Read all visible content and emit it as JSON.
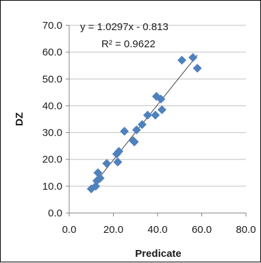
{
  "chart_data": {
    "type": "scatter",
    "xlabel": "Predicate",
    "ylabel": "DZ",
    "xlim": [
      0,
      80
    ],
    "ylim": [
      0,
      70
    ],
    "x_ticks": [
      0,
      20,
      40,
      60,
      80
    ],
    "y_ticks": [
      0,
      10,
      20,
      30,
      40,
      50,
      60,
      70
    ],
    "x_tick_labels": [
      "0.0",
      "20.0",
      "40.0",
      "60.0",
      "80.0"
    ],
    "y_tick_labels": [
      "0.0",
      "10.0",
      "20.0",
      "30.0",
      "40.0",
      "50.0",
      "60.0",
      "70.0"
    ],
    "grid": {
      "horizontal": true,
      "vertical": false
    },
    "legend": "none",
    "marker": "diamond",
    "marker_color": "#4f81bd",
    "trendline_color": "#404040",
    "trendline": {
      "type": "linear",
      "slope": 1.0297,
      "intercept": -0.813,
      "x_range": [
        9,
        58
      ]
    },
    "annotations": {
      "equation": "y = 1.0297x - 0.813",
      "r_squared": "R² = 0.9622"
    },
    "points": [
      {
        "x": 10,
        "y": 9
      },
      {
        "x": 12,
        "y": 10
      },
      {
        "x": 12.5,
        "y": 12
      },
      {
        "x": 13,
        "y": 15
      },
      {
        "x": 14,
        "y": 13
      },
      {
        "x": 17,
        "y": 18.5
      },
      {
        "x": 21.5,
        "y": 22
      },
      {
        "x": 22,
        "y": 19
      },
      {
        "x": 22.5,
        "y": 23
      },
      {
        "x": 25,
        "y": 30.5
      },
      {
        "x": 29,
        "y": 27
      },
      {
        "x": 29.5,
        "y": 26.5
      },
      {
        "x": 30.5,
        "y": 31
      },
      {
        "x": 33,
        "y": 33
      },
      {
        "x": 35.5,
        "y": 36.5
      },
      {
        "x": 39,
        "y": 36.5
      },
      {
        "x": 39.5,
        "y": 43.5
      },
      {
        "x": 41.5,
        "y": 42.5
      },
      {
        "x": 42,
        "y": 38.5
      },
      {
        "x": 51,
        "y": 57
      },
      {
        "x": 56,
        "y": 58
      },
      {
        "x": 58,
        "y": 54
      }
    ]
  }
}
